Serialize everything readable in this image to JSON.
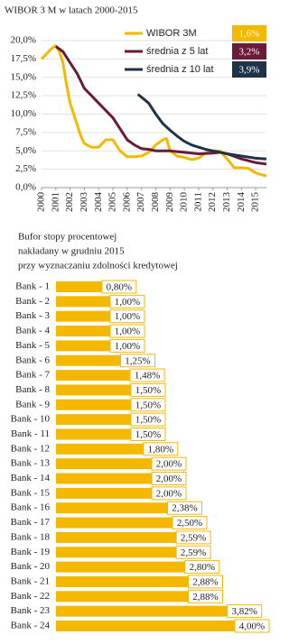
{
  "chart_data": [
    {
      "type": "line",
      "title": "WIBOR 3 M w latach 2000-2015",
      "xlim": [
        2000,
        2015.75
      ],
      "xticks": [
        2000,
        2001,
        2002,
        2003,
        2004,
        2005,
        2006,
        2007,
        2008,
        2009,
        2010,
        2011,
        2012,
        2013,
        2014,
        2015
      ],
      "ylim": [
        0,
        20
      ],
      "yticks": [
        {
          "value": 0,
          "label": "0,0%"
        },
        {
          "value": 2.5,
          "label": "2,5%"
        },
        {
          "value": 5,
          "label": "5,0%"
        },
        {
          "value": 7.5,
          "label": "7,5%"
        },
        {
          "value": 10,
          "label": "10,0%"
        },
        {
          "value": 12.5,
          "label": "12,5%"
        },
        {
          "value": 15,
          "label": "15,0%"
        },
        {
          "value": 17.5,
          "label": "17,5%"
        },
        {
          "value": 20,
          "label": "20,0%"
        }
      ],
      "grid": true,
      "series": [
        {
          "name": "WIBOR 3M",
          "color": "#f5b800",
          "last": 1.6,
          "last_label": "1,6%",
          "x": [
            2000,
            2000.25,
            2000.5,
            2000.75,
            2001,
            2001.25,
            2001.5,
            2001.75,
            2002,
            2002.25,
            2002.5,
            2002.75,
            2003,
            2003.5,
            2004,
            2004.5,
            2005,
            2005.5,
            2006,
            2006.5,
            2007,
            2007.5,
            2008,
            2008.5,
            2008.75,
            2009,
            2009.5,
            2010,
            2010.5,
            2011,
            2011.5,
            2012,
            2012.5,
            2013,
            2013.5,
            2014,
            2014.5,
            2015,
            2015.5,
            2015.75
          ],
          "values": [
            17.5,
            18,
            18.5,
            19,
            19.3,
            18.5,
            17,
            14,
            11.5,
            10,
            8.5,
            7,
            6,
            5.5,
            5.5,
            6.5,
            6.5,
            5,
            4.2,
            4.2,
            4.3,
            4.8,
            5.8,
            6.5,
            6.7,
            5,
            4.3,
            4.1,
            3.8,
            4,
            4.7,
            5,
            5,
            3.9,
            2.7,
            2.7,
            2.6,
            2,
            1.7,
            1.6
          ]
        },
        {
          "name": "średnia z 5 lat",
          "color": "#6b1a3a",
          "last": 3.2,
          "last_label": "3,2%",
          "x": [
            2001,
            2001.5,
            2002,
            2002.5,
            2003,
            2003.5,
            2004,
            2004.5,
            2005,
            2005.5,
            2006,
            2006.5,
            2007,
            2007.5,
            2008,
            2008.5,
            2009,
            2009.5,
            2010,
            2011,
            2012,
            2012.5,
            2013,
            2014,
            2015,
            2015.75
          ],
          "values": [
            19.2,
            18.5,
            17,
            15.5,
            13.5,
            12.5,
            11.5,
            10.5,
            9.5,
            8,
            6.5,
            5.8,
            5.3,
            5.2,
            5,
            5,
            5,
            4.9,
            4.8,
            4.6,
            4.7,
            4.8,
            4.6,
            3.9,
            3.4,
            3.2
          ]
        },
        {
          "name": "średnia z 10 lat",
          "color": "#1f3347",
          "last": 3.9,
          "last_label": "3,9%",
          "x": [
            2006.75,
            2007.5,
            2008,
            2008.5,
            2009,
            2009.5,
            2010,
            2010.5,
            2011,
            2011.5,
            2012,
            2013,
            2014,
            2015,
            2015.75
          ],
          "values": [
            12.7,
            11.5,
            10,
            8.7,
            7.8,
            7,
            6.3,
            5.8,
            5.5,
            5.2,
            5,
            4.6,
            4.3,
            4,
            3.9
          ]
        }
      ]
    },
    {
      "type": "hbar",
      "title": [
        "Bufor stopy procentowej",
        "nakładany w grudniu 2015",
        "przy wyznaczaniu zdolności kredytowej"
      ],
      "color": "#f5b800",
      "categories": [
        "Bank - 1",
        "Bank - 2",
        "Bank - 3",
        "Bank - 4",
        "Bank - 5",
        "Bank - 6",
        "Bank - 7",
        "Bank - 8",
        "Bank - 9",
        "Bank - 10",
        "Bank - 11",
        "Bank - 12",
        "Bank - 13",
        "Bank - 14",
        "Bank - 15",
        "Bank - 16",
        "Bank - 17",
        "Bank - 18",
        "Bank - 19",
        "Bank - 20",
        "Bank - 21",
        "Bank - 22",
        "Bank - 23",
        "Bank - 24"
      ],
      "values": [
        0.8,
        1,
        1,
        1,
        1,
        1.25,
        1.48,
        1.5,
        1.5,
        1.5,
        1.5,
        1.8,
        2,
        2,
        2,
        2.38,
        2.5,
        2.59,
        2.59,
        2.8,
        2.88,
        2.88,
        3.82,
        4
      ],
      "value_labels": [
        "0,80%",
        "1,00%",
        "1,00%",
        "1,00%",
        "1,00%",
        "1,25%",
        "1,48%",
        "1,50%",
        "1,50%",
        "1,50%",
        "1,50%",
        "1,80%",
        "2,00%",
        "2,00%",
        "2,00%",
        "2,38%",
        "2,50%",
        "2,59%",
        "2,59%",
        "2,80%",
        "2,88%",
        "2,88%",
        "3,82%",
        "4,00%"
      ]
    }
  ]
}
